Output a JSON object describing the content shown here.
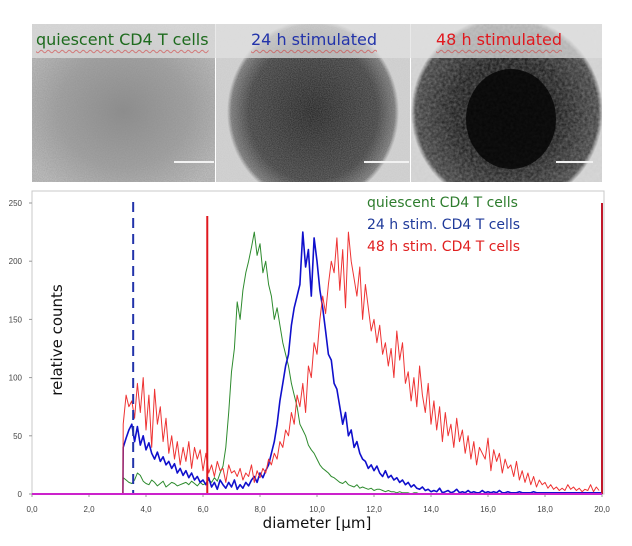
{
  "micrographs": {
    "panels": [
      {
        "label": "quiescent CD4 T cells",
        "color": "#1e6b1e",
        "scale_bar": true
      },
      {
        "label": "24 h stimulated",
        "color": "#2233aa",
        "scale_bar": true
      },
      {
        "label": "48 h stimulated",
        "color": "#e0181e",
        "scale_bar": true
      }
    ]
  },
  "chart_data": {
    "type": "line",
    "title": "",
    "xlabel": "diameter [µm]",
    "ylabel": "relative counts",
    "xlim": [
      0,
      20
    ],
    "ylim": [
      0,
      250
    ],
    "x_ticks": [
      "0,0",
      "2,0",
      "4,0",
      "6,0",
      "8,0",
      "10,0",
      "12,0",
      "14,0",
      "16,0",
      "18,0",
      "20,0"
    ],
    "x_tick_values": [
      0,
      2,
      4,
      6,
      8,
      10,
      12,
      14,
      16,
      18,
      20
    ],
    "y_ticks": [
      "0",
      "50",
      "100",
      "150",
      "200",
      "250"
    ],
    "y_tick_values": [
      0,
      50,
      100,
      150,
      200,
      250
    ],
    "grid": false,
    "legend_position": "top-right",
    "baseline_color": "#cc22cc",
    "markers": [
      {
        "name": "24 h stim. gate",
        "x": 3.55,
        "style": "dashed",
        "color": "#2233aa"
      },
      {
        "name": "48 h stim. gate",
        "x": 6.15,
        "style": "solid",
        "color": "#e0181e"
      },
      {
        "name": "upper gate",
        "x": 20.0,
        "style": "solid",
        "color": "#c0182a"
      }
    ],
    "x_start": 3.2,
    "x_step": 0.1,
    "series": [
      {
        "name": "quiescent CD4 T cells",
        "color": "#2e8b2e",
        "values": [
          14,
          12,
          10,
          9,
          12,
          18,
          16,
          11,
          9,
          8,
          12,
          10,
          7,
          9,
          11,
          6,
          8,
          10,
          9,
          7,
          8,
          9,
          10,
          8,
          11,
          9,
          7,
          10,
          8,
          9,
          12,
          10,
          14,
          11,
          18,
          24,
          40,
          70,
          105,
          125,
          165,
          150,
          175,
          190,
          200,
          212,
          225,
          205,
          215,
          190,
          200,
          180,
          170,
          150,
          160,
          145,
          130,
          120,
          110,
          95,
          85,
          75,
          60,
          55,
          50,
          42,
          38,
          35,
          30,
          25,
          22,
          20,
          18,
          15,
          14,
          12,
          10,
          9,
          11,
          8,
          7,
          6,
          8,
          5,
          6,
          5,
          4,
          5,
          3,
          4,
          4,
          3,
          2,
          3,
          2,
          2,
          1,
          2,
          1,
          1,
          1,
          0,
          1,
          1,
          0,
          0,
          0,
          0,
          0,
          0,
          0,
          0,
          0,
          0,
          0,
          0,
          0,
          0,
          0,
          0,
          0,
          0,
          0,
          0,
          0,
          0,
          0,
          0,
          0,
          0,
          0,
          0,
          0,
          0,
          0,
          0,
          0,
          0,
          0,
          0,
          0,
          0,
          0,
          0,
          0,
          0,
          0,
          0,
          0,
          0,
          0,
          0,
          0,
          0,
          0,
          0,
          0,
          0,
          0,
          0,
          0,
          0,
          0,
          0,
          0,
          0,
          0,
          0
        ]
      },
      {
        "name": "24 h stim. CD4 T cells",
        "color": "#1010cc",
        "values": [
          40,
          48,
          55,
          60,
          45,
          58,
          42,
          50,
          38,
          44,
          35,
          30,
          36,
          28,
          32,
          25,
          28,
          22,
          26,
          18,
          22,
          16,
          20,
          14,
          18,
          12,
          15,
          10,
          12,
          8,
          14,
          6,
          10,
          4,
          12,
          8,
          5,
          10,
          6,
          12,
          4,
          8,
          5,
          10,
          7,
          12,
          15,
          10,
          18,
          14,
          20,
          25,
          35,
          45,
          60,
          80,
          95,
          110,
          120,
          145,
          160,
          170,
          180,
          225,
          195,
          210,
          170,
          220,
          200,
          175,
          160,
          140,
          120,
          115,
          95,
          90,
          75,
          60,
          70,
          50,
          55,
          40,
          45,
          35,
          30,
          28,
          22,
          25,
          20,
          24,
          18,
          15,
          20,
          14,
          16,
          12,
          14,
          10,
          12,
          8,
          10,
          6,
          8,
          5,
          4,
          6,
          3,
          4,
          2,
          3,
          2,
          5,
          1,
          2,
          3,
          1,
          2,
          4,
          1,
          2,
          1,
          3,
          1,
          2,
          1,
          1,
          3,
          1,
          2,
          1,
          2,
          1,
          3,
          1,
          1,
          2,
          1,
          1,
          1,
          2,
          1,
          1,
          1,
          1,
          2,
          1,
          1,
          1,
          1,
          1,
          1,
          1,
          1,
          1,
          1,
          1,
          1,
          1,
          1,
          1,
          1,
          1,
          1,
          1,
          1,
          1,
          1,
          1,
          1
        ]
      },
      {
        "name": "48 h stim. CD4 T cells",
        "color": "#ee3333",
        "values": [
          60,
          85,
          75,
          80,
          65,
          95,
          70,
          100,
          55,
          85,
          40,
          90,
          60,
          75,
          45,
          65,
          35,
          50,
          30,
          45,
          25,
          40,
          28,
          45,
          22,
          40,
          30,
          38,
          20,
          35,
          18,
          25,
          15,
          28,
          20,
          22,
          10,
          25,
          18,
          20,
          15,
          22,
          12,
          18,
          15,
          25,
          10,
          20,
          14,
          22,
          18,
          30,
          25,
          35,
          30,
          45,
          40,
          55,
          50,
          70,
          60,
          85,
          75,
          95,
          70,
          110,
          100,
          130,
          120,
          150,
          170,
          155,
          180,
          200,
          190,
          220,
          175,
          210,
          160,
          225,
          200,
          185,
          170,
          195,
          150,
          180,
          160,
          140,
          150,
          130,
          145,
          120,
          130,
          110,
          125,
          100,
          140,
          115,
          130,
          95,
          105,
          80,
          100,
          75,
          110,
          85,
          70,
          95,
          60,
          80,
          55,
          75,
          45,
          70,
          50,
          60,
          40,
          65,
          45,
          55,
          35,
          50,
          30,
          45,
          25,
          40,
          35,
          30,
          48,
          20,
          38,
          28,
          35,
          18,
          30,
          22,
          25,
          15,
          28,
          12,
          20,
          10,
          18,
          8,
          15,
          6,
          12,
          8,
          10,
          5,
          8,
          4,
          6,
          3,
          5,
          3,
          8,
          4,
          6,
          3,
          5,
          2,
          4,
          3,
          8,
          2,
          6,
          3
        ]
      }
    ]
  }
}
